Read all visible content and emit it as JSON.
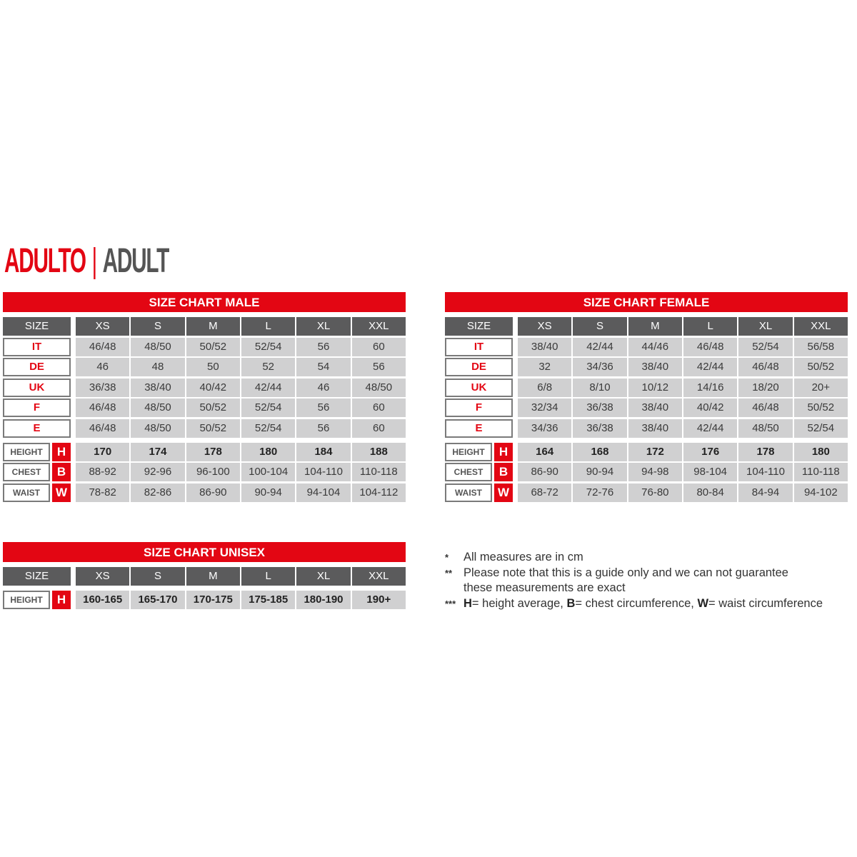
{
  "title": {
    "primary": "ADULTO",
    "separator": "|",
    "secondary": "ADULT"
  },
  "colors": {
    "brand_red": "#e30613",
    "header_gray": "#5b5b5c",
    "cell_gray": "#d0d0d1"
  },
  "sizes": [
    "XS",
    "S",
    "M",
    "L",
    "XL",
    "XXL"
  ],
  "size_label": "SIZE",
  "male": {
    "title": "SIZE CHART MALE",
    "countries": [
      {
        "label": "IT",
        "values": [
          "46/48",
          "48/50",
          "50/52",
          "52/54",
          "56",
          "60"
        ]
      },
      {
        "label": "DE",
        "values": [
          "46",
          "48",
          "50",
          "52",
          "54",
          "56"
        ]
      },
      {
        "label": "UK",
        "values": [
          "36/38",
          "38/40",
          "40/42",
          "42/44",
          "46",
          "48/50"
        ]
      },
      {
        "label": "F",
        "values": [
          "46/48",
          "48/50",
          "50/52",
          "52/54",
          "56",
          "60"
        ]
      },
      {
        "label": "E",
        "values": [
          "46/48",
          "48/50",
          "50/52",
          "52/54",
          "56",
          "60"
        ]
      }
    ],
    "measures": [
      {
        "label": "HEIGHT",
        "letter": "H",
        "values": [
          "170",
          "174",
          "178",
          "180",
          "184",
          "188"
        ]
      },
      {
        "label": "CHEST",
        "letter": "B",
        "values": [
          "88-92",
          "92-96",
          "96-100",
          "100-104",
          "104-110",
          "110-118"
        ]
      },
      {
        "label": "WAIST",
        "letter": "W",
        "values": [
          "78-82",
          "82-86",
          "86-90",
          "90-94",
          "94-104",
          "104-112"
        ]
      }
    ]
  },
  "female": {
    "title": "SIZE CHART FEMALE",
    "countries": [
      {
        "label": "IT",
        "values": [
          "38/40",
          "42/44",
          "44/46",
          "46/48",
          "52/54",
          "56/58"
        ]
      },
      {
        "label": "DE",
        "values": [
          "32",
          "34/36",
          "38/40",
          "42/44",
          "46/48",
          "50/52"
        ]
      },
      {
        "label": "UK",
        "values": [
          "6/8",
          "8/10",
          "10/12",
          "14/16",
          "18/20",
          "20+"
        ]
      },
      {
        "label": "F",
        "values": [
          "32/34",
          "36/38",
          "38/40",
          "40/42",
          "46/48",
          "50/52"
        ]
      },
      {
        "label": "E",
        "values": [
          "34/36",
          "36/38",
          "38/40",
          "42/44",
          "48/50",
          "52/54"
        ]
      }
    ],
    "measures": [
      {
        "label": "HEIGHT",
        "letter": "H",
        "values": [
          "164",
          "168",
          "172",
          "176",
          "178",
          "180"
        ]
      },
      {
        "label": "CHEST",
        "letter": "B",
        "values": [
          "86-90",
          "90-94",
          "94-98",
          "98-104",
          "104-110",
          "110-118"
        ]
      },
      {
        "label": "WAIST",
        "letter": "W",
        "values": [
          "68-72",
          "72-76",
          "76-80",
          "80-84",
          "84-94",
          "94-102"
        ]
      }
    ]
  },
  "unisex": {
    "title": "SIZE CHART UNISEX",
    "countries": [],
    "measures": [
      {
        "label": "HEIGHT",
        "letter": "H",
        "values": [
          "160-165",
          "165-170",
          "170-175",
          "175-185",
          "180-190",
          "190+"
        ]
      }
    ]
  },
  "notes": [
    {
      "marker": "*",
      "text": "All measures are in cm"
    },
    {
      "marker": "**",
      "text": "Please note that this is a guide only and we can not guarantee",
      "text2": "these measurements are exact"
    },
    {
      "marker": "***",
      "parts": [
        {
          "b": "H",
          "t": "= height average, "
        },
        {
          "b": "B",
          "t": "= chest circumference, "
        },
        {
          "b": "W",
          "t": "= waist circumference"
        }
      ]
    }
  ]
}
